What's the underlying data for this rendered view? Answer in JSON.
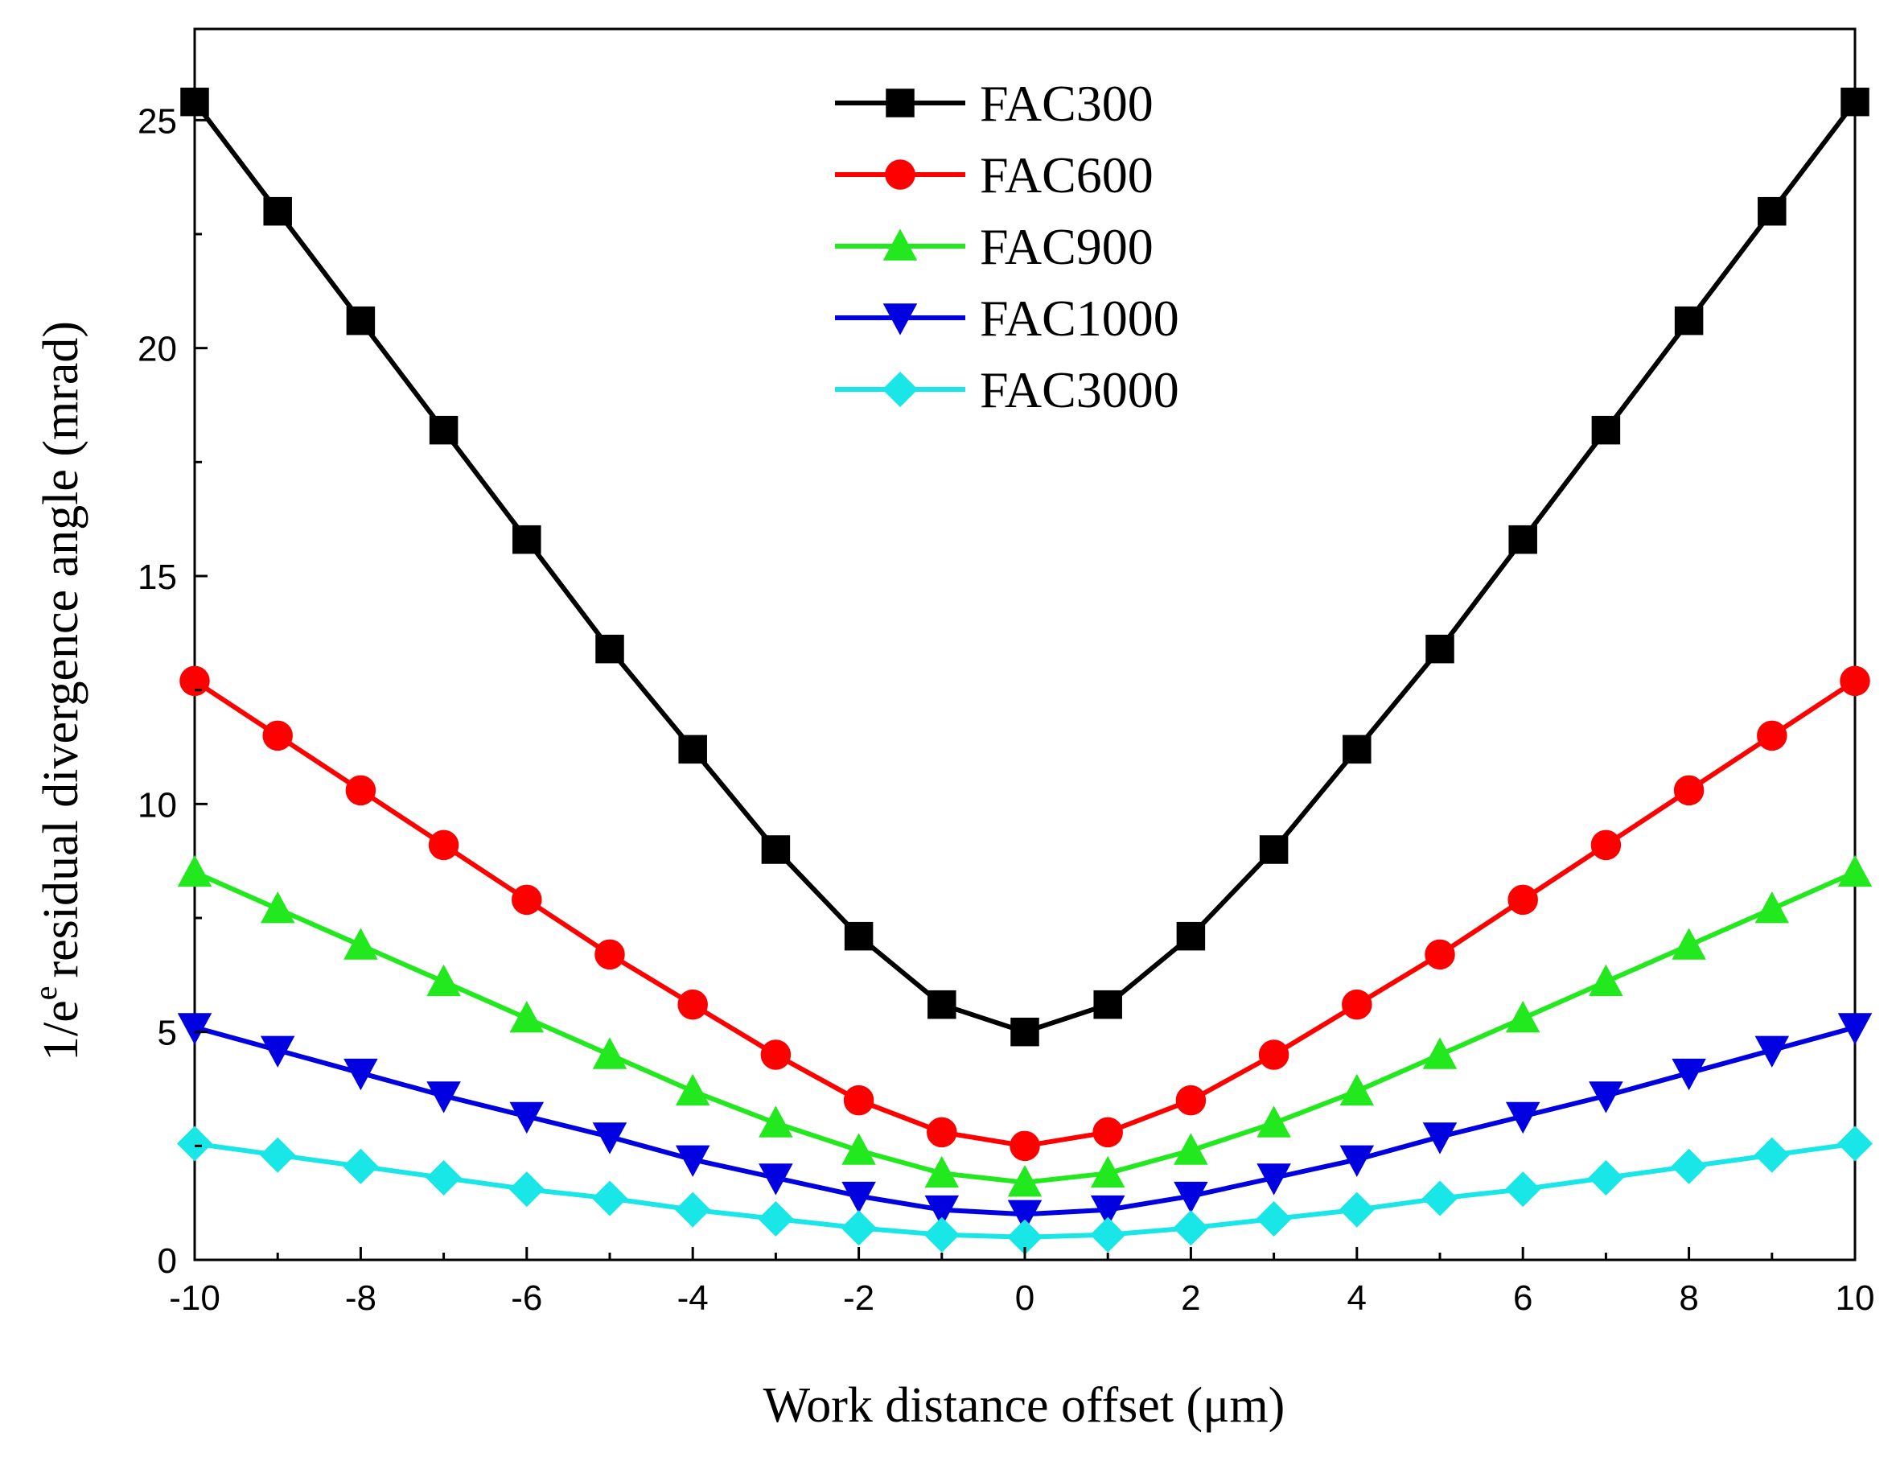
{
  "chart_data": {
    "type": "line",
    "title": "",
    "xlabel": "Work distance offset (μm)",
    "ylabel_prefix": "1/e",
    "ylabel_superscript": "e",
    "ylabel_main": "residual divergence angle (mrad)",
    "xlim": [
      -10,
      10
    ],
    "ylim": [
      0,
      27
    ],
    "x_ticks": [
      -10,
      -8,
      -6,
      -4,
      -2,
      0,
      2,
      4,
      6,
      8,
      10
    ],
    "x_tick_labels": [
      "-10",
      "-8",
      "-6",
      "-4",
      "-2",
      "0",
      "2",
      "4",
      "6",
      "8",
      "10"
    ],
    "y_ticks": [
      0,
      5,
      10,
      15,
      20,
      25
    ],
    "y_tick_labels": [
      "0",
      "5",
      "10",
      "15",
      "20",
      "25"
    ],
    "grid": false,
    "legend_position": "top-center",
    "x": [
      -10,
      -9,
      -8,
      -7,
      -6,
      -5,
      -4,
      -3,
      -2,
      -1,
      0,
      1,
      2,
      3,
      4,
      5,
      6,
      7,
      8,
      9,
      10
    ],
    "series": [
      {
        "name": "FAC300",
        "color": "#000000",
        "marker": "square",
        "values": [
          25.4,
          23.0,
          20.6,
          18.2,
          15.8,
          13.4,
          11.2,
          9.0,
          7.1,
          5.6,
          5.0,
          5.6,
          7.1,
          9.0,
          11.2,
          13.4,
          15.8,
          18.2,
          20.6,
          23.0,
          25.4
        ]
      },
      {
        "name": "FAC600",
        "color": "#ff0000",
        "marker": "circle",
        "values": [
          12.7,
          11.5,
          10.3,
          9.1,
          7.9,
          6.7,
          5.6,
          4.5,
          3.5,
          2.8,
          2.5,
          2.8,
          3.5,
          4.5,
          5.6,
          6.7,
          7.9,
          9.1,
          10.3,
          11.5,
          12.7
        ]
      },
      {
        "name": "FAC900",
        "color": "#22e81e",
        "marker": "triangle-up",
        "values": [
          8.5,
          7.7,
          6.9,
          6.1,
          5.3,
          4.5,
          3.7,
          3.0,
          2.4,
          1.9,
          1.7,
          1.9,
          2.4,
          3.0,
          3.7,
          4.5,
          5.3,
          6.1,
          6.9,
          7.7,
          8.5
        ]
      },
      {
        "name": "FAC1000",
        "color": "#0000e0",
        "marker": "triangle-down",
        "values": [
          5.1,
          4.6,
          4.1,
          3.6,
          3.15,
          2.7,
          2.2,
          1.8,
          1.4,
          1.1,
          1.0,
          1.1,
          1.4,
          1.8,
          2.2,
          2.7,
          3.15,
          3.6,
          4.1,
          4.6,
          5.1
        ]
      },
      {
        "name": "FAC3000",
        "color": "#19e6e6",
        "marker": "diamond",
        "values": [
          2.55,
          2.3,
          2.05,
          1.8,
          1.55,
          1.35,
          1.1,
          0.9,
          0.7,
          0.55,
          0.5,
          0.55,
          0.7,
          0.9,
          1.1,
          1.35,
          1.55,
          1.8,
          2.05,
          2.3,
          2.55
        ]
      }
    ]
  }
}
